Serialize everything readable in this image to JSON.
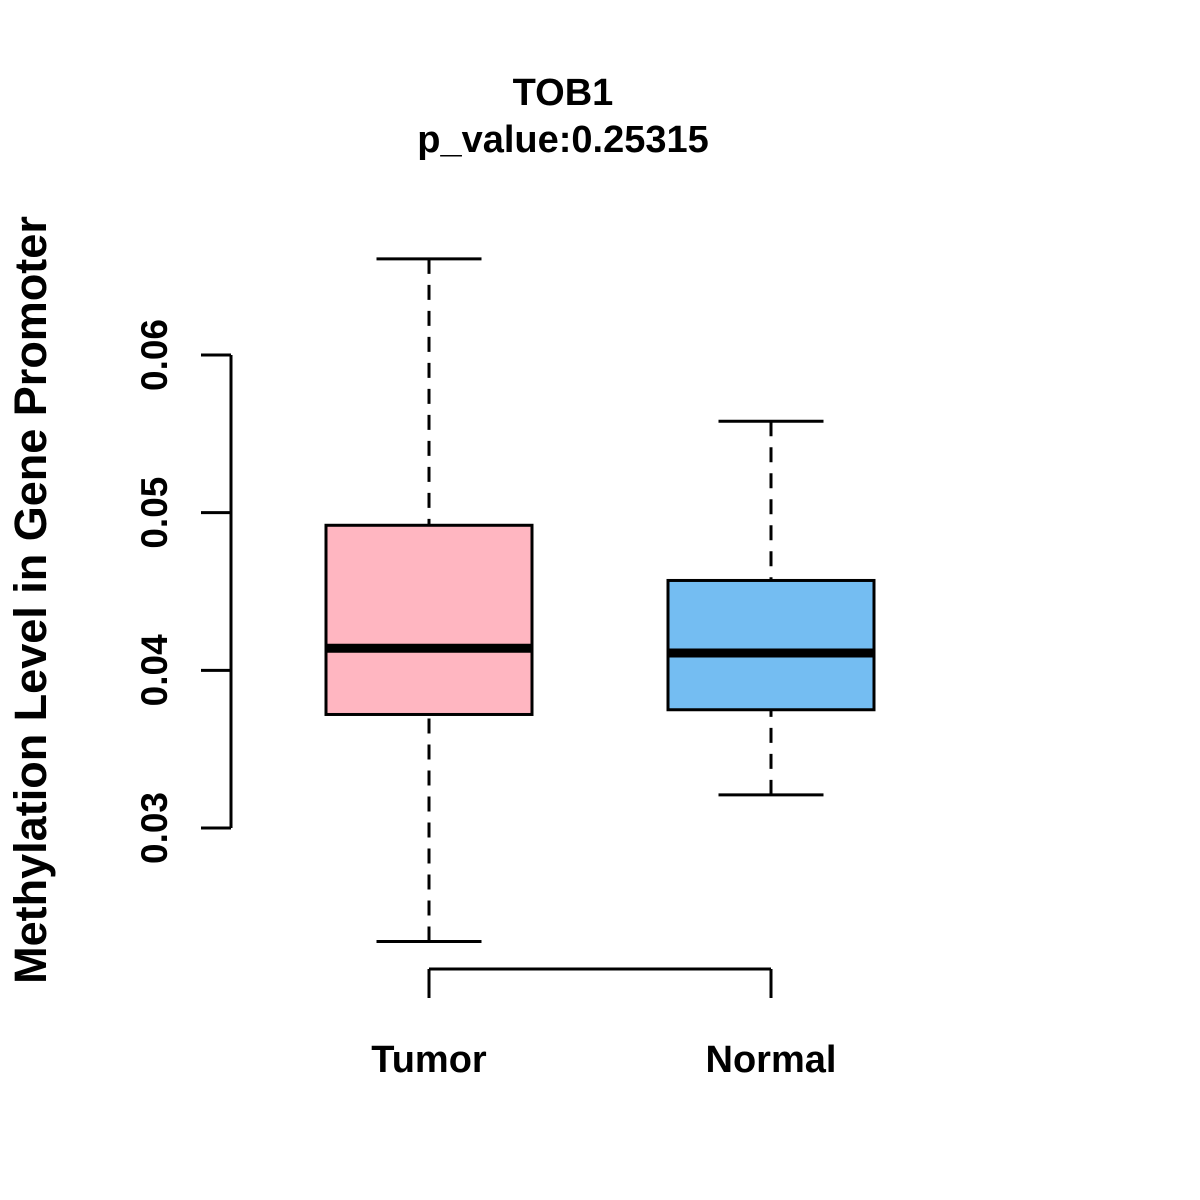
{
  "chart_data": {
    "type": "boxplot",
    "title": "TOB1",
    "subtitle": "p_value:0.25315",
    "xlabel": "",
    "ylabel": "Methylation Level in Gene Promoter",
    "categories": [
      "Tumor",
      "Normal"
    ],
    "yticks": [
      0.03,
      0.04,
      0.05,
      0.06
    ],
    "ytick_labels": [
      "0.03",
      "0.04",
      "0.05",
      "0.06"
    ],
    "y_axis_range": [
      0.03,
      0.06
    ],
    "grid": false,
    "legend": "none",
    "series": [
      {
        "name": "Tumor",
        "color": "#FFB6C1",
        "stats": {
          "whisker_low": 0.0228,
          "q1": 0.0372,
          "median": 0.0414,
          "q3": 0.0492,
          "whisker_high": 0.0661
        }
      },
      {
        "name": "Normal",
        "color": "#74BDF2",
        "stats": {
          "whisker_low": 0.0321,
          "q1": 0.0375,
          "median": 0.0411,
          "q3": 0.0457,
          "whisker_high": 0.0558
        }
      }
    ],
    "colors": {
      "stroke": "#000000",
      "background": "#FFFFFF",
      "tumor_fill": "#FFB6C1",
      "normal_fill": "#74BDF2"
    }
  }
}
